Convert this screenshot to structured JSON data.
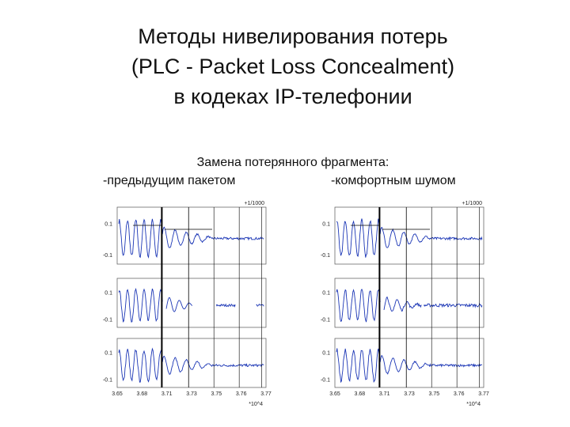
{
  "title": [
    "Методы нивелирования потерь",
    "(PLC - Packet Loss Concealment)",
    "в кодеках IP-телефонии"
  ],
  "subtitle": "Замена потерянного фрагмента:",
  "captions": [
    "-предыдущим пакетом",
    "-комфортным шумом"
  ],
  "figures": [
    {
      "scale_note": "+1/1000",
      "y_ticks": [
        "0.1",
        "-0.1"
      ],
      "x_ticks": [
        "3.65",
        "3.68",
        "3.71",
        "3.73",
        "3.75",
        "3.76",
        "3.77"
      ],
      "x_multiplier": "*10^4"
    },
    {
      "scale_note": "+1/1000",
      "y_ticks": [
        "0.1",
        "-0.1"
      ],
      "x_ticks": [
        "3.65",
        "3.68",
        "3.71",
        "3.73",
        "3.75",
        "3.76",
        "3.77"
      ],
      "x_multiplier": "*10^4"
    }
  ]
}
